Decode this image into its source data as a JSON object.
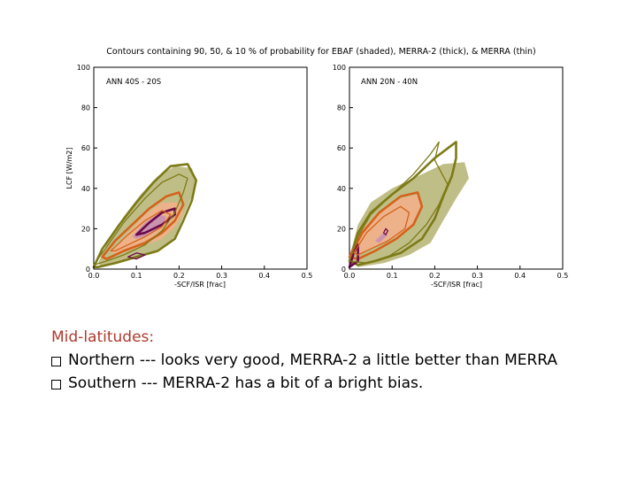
{
  "figure": {
    "title": "Contours containing 90, 50, & 10 % of probability for EBAF (shaded), MERRA-2 (thick), & MERRA (thin)"
  },
  "chart_data": [
    {
      "type": "contour",
      "panel_label": "ANN   40S - 20S",
      "xlabel": "-SCF/ISR  [frac]",
      "ylabel": "LCF [W/m2]",
      "xlim": [
        0.0,
        0.5
      ],
      "ylim": [
        0,
        100
      ],
      "xticks": [
        "0.0",
        "0.1",
        "0.2",
        "0.3",
        "0.4",
        "0.5"
      ],
      "yticks": [
        "0",
        "20",
        "40",
        "60",
        "80",
        "100"
      ],
      "series": [
        {
          "level": "10%",
          "source": "EBAF",
          "style": "shaded",
          "color": "#b9b77a",
          "points": [
            [
              0.01,
              3
            ],
            [
              0.03,
              12
            ],
            [
              0.07,
              26
            ],
            [
              0.11,
              37
            ],
            [
              0.15,
              46
            ],
            [
              0.19,
              51
            ],
            [
              0.23,
              50
            ],
            [
              0.24,
              43
            ],
            [
              0.23,
              36
            ],
            [
              0.21,
              26
            ],
            [
              0.19,
              16
            ],
            [
              0.16,
              10
            ],
            [
              0.11,
              6
            ],
            [
              0.06,
              3
            ],
            [
              0.02,
              1
            ]
          ]
        },
        {
          "level": "50%",
          "source": "EBAF",
          "style": "shaded",
          "color": "#f2b08a",
          "points": [
            [
              0.04,
              8
            ],
            [
              0.08,
              18
            ],
            [
              0.12,
              27
            ],
            [
              0.16,
              33
            ],
            [
              0.2,
              33
            ],
            [
              0.21,
              28
            ],
            [
              0.19,
              21
            ],
            [
              0.16,
              15
            ],
            [
              0.11,
              11
            ],
            [
              0.06,
              8
            ]
          ]
        },
        {
          "level": "90%",
          "source": "EBAF",
          "style": "shaded",
          "color": "#c58fb4",
          "points": [
            [
              0.09,
              16
            ],
            [
              0.12,
              23
            ],
            [
              0.15,
              27
            ],
            [
              0.17,
              26
            ],
            [
              0.16,
              21
            ],
            [
              0.13,
              17
            ],
            [
              0.1,
              15
            ]
          ]
        },
        {
          "level": "10%",
          "source": "MERRA-2",
          "style": "thick",
          "color": "#7d7a17",
          "points": [
            [
              0.0,
              1
            ],
            [
              0.02,
              10
            ],
            [
              0.06,
              22
            ],
            [
              0.1,
              33
            ],
            [
              0.14,
              43
            ],
            [
              0.18,
              51
            ],
            [
              0.22,
              52
            ],
            [
              0.24,
              44
            ],
            [
              0.23,
              34
            ],
            [
              0.21,
              24
            ],
            [
              0.19,
              15
            ],
            [
              0.15,
              9
            ],
            [
              0.1,
              6
            ],
            [
              0.05,
              3
            ],
            [
              0.01,
              1
            ]
          ]
        },
        {
          "level": "50%",
          "source": "MERRA-2",
          "style": "thick",
          "color": "#d4621c",
          "points": [
            [
              0.02,
              6
            ],
            [
              0.05,
              14
            ],
            [
              0.09,
              22
            ],
            [
              0.13,
              30
            ],
            [
              0.17,
              36
            ],
            [
              0.2,
              38
            ],
            [
              0.21,
              32
            ],
            [
              0.19,
              24
            ],
            [
              0.16,
              18
            ],
            [
              0.12,
              13
            ],
            [
              0.07,
              9
            ],
            [
              0.03,
              5
            ]
          ]
        },
        {
          "level": "90%",
          "source": "MERRA-2",
          "style": "thick",
          "color": "#6a0a4a",
          "points": [
            [
              0.1,
              17
            ],
            [
              0.13,
              23
            ],
            [
              0.16,
              28
            ],
            [
              0.19,
              30
            ],
            [
              0.19,
              27
            ],
            [
              0.16,
              22
            ],
            [
              0.12,
              18
            ]
          ]
        },
        {
          "level": "10%",
          "source": "MERRA",
          "style": "thin",
          "color": "#7d7a17",
          "points": [
            [
              0.0,
              2
            ],
            [
              0.03,
              11
            ],
            [
              0.07,
              23
            ],
            [
              0.12,
              35
            ],
            [
              0.16,
              43
            ],
            [
              0.2,
              47
            ],
            [
              0.22,
              45
            ],
            [
              0.21,
              38
            ],
            [
              0.19,
              28
            ],
            [
              0.16,
              19
            ],
            [
              0.12,
              12
            ],
            [
              0.07,
              7
            ],
            [
              0.03,
              4
            ]
          ]
        },
        {
          "level": "50%",
          "source": "MERRA",
          "style": "thin",
          "color": "#d4621c",
          "points": [
            [
              0.04,
              9
            ],
            [
              0.08,
              17
            ],
            [
              0.12,
              24
            ],
            [
              0.16,
              29
            ],
            [
              0.18,
              27
            ],
            [
              0.16,
              21
            ],
            [
              0.12,
              16
            ],
            [
              0.08,
              12
            ],
            [
              0.05,
              9
            ]
          ]
        },
        {
          "level": "90%",
          "source": "MERRA",
          "style": "thin",
          "color": "#6a0a4a",
          "points": [
            [
              0.08,
              6
            ],
            [
              0.1,
              8
            ],
            [
              0.12,
              7
            ],
            [
              0.1,
              5
            ]
          ]
        }
      ]
    },
    {
      "type": "contour",
      "panel_label": "ANN   20N - 40N",
      "xlabel": "-SCF/ISR  [frac]",
      "ylabel": "",
      "xlim": [
        0.0,
        0.5
      ],
      "ylim": [
        0,
        100
      ],
      "xticks": [
        "0.0",
        "0.1",
        "0.2",
        "0.3",
        "0.4",
        "0.5"
      ],
      "yticks": [
        "0",
        "20",
        "40",
        "60",
        "80",
        "100"
      ],
      "series": [
        {
          "level": "10%",
          "source": "EBAF",
          "style": "shaded",
          "color": "#b9b77a",
          "points": [
            [
              0.0,
              6
            ],
            [
              0.02,
              22
            ],
            [
              0.05,
              33
            ],
            [
              0.1,
              40
            ],
            [
              0.16,
              46
            ],
            [
              0.22,
              52
            ],
            [
              0.27,
              53
            ],
            [
              0.28,
              45
            ],
            [
              0.25,
              35
            ],
            [
              0.22,
              24
            ],
            [
              0.19,
              13
            ],
            [
              0.14,
              7
            ],
            [
              0.08,
              3
            ],
            [
              0.02,
              1
            ]
          ]
        },
        {
          "level": "50%",
          "source": "EBAF",
          "style": "shaded",
          "color": "#f2b08a",
          "points": [
            [
              0.0,
              8
            ],
            [
              0.03,
              20
            ],
            [
              0.07,
              28
            ],
            [
              0.12,
              35
            ],
            [
              0.16,
              37
            ],
            [
              0.17,
              30
            ],
            [
              0.15,
              22
            ],
            [
              0.11,
              16
            ],
            [
              0.06,
              11
            ],
            [
              0.02,
              7
            ]
          ]
        },
        {
          "level": "90%",
          "source": "EBAF",
          "style": "shaded",
          "color": "#c58fb4",
          "points": [
            [
              0.06,
              14
            ],
            [
              0.08,
              18
            ],
            [
              0.09,
              17
            ],
            [
              0.07,
              13
            ]
          ]
        },
        {
          "level": "10%",
          "source": "MERRA-2",
          "style": "thick",
          "color": "#7d7a17",
          "points": [
            [
              0.0,
              4
            ],
            [
              0.02,
              18
            ],
            [
              0.05,
              28
            ],
            [
              0.1,
              37
            ],
            [
              0.15,
              45
            ],
            [
              0.2,
              55
            ],
            [
              0.25,
              63
            ],
            [
              0.25,
              55
            ],
            [
              0.24,
              46
            ],
            [
              0.22,
              36
            ],
            [
              0.2,
              25
            ],
            [
              0.17,
              15
            ],
            [
              0.12,
              8
            ],
            [
              0.06,
              4
            ],
            [
              0.02,
              2
            ]
          ]
        },
        {
          "level": "50%",
          "source": "MERRA-2",
          "style": "thick",
          "color": "#d4621c",
          "points": [
            [
              0.0,
              6
            ],
            [
              0.03,
              18
            ],
            [
              0.07,
              28
            ],
            [
              0.12,
              36
            ],
            [
              0.16,
              38
            ],
            [
              0.17,
              31
            ],
            [
              0.15,
              22
            ],
            [
              0.11,
              15
            ],
            [
              0.06,
              9
            ],
            [
              0.02,
              5
            ]
          ]
        },
        {
          "level": "90%",
          "source": "MERRA-2",
          "style": "thick",
          "color": "#6a0a4a",
          "points": [
            [
              0.0,
              1
            ],
            [
              0.01,
              8
            ],
            [
              0.02,
              12
            ],
            [
              0.02,
              4
            ]
          ]
        },
        {
          "level": "10%",
          "source": "MERRA",
          "style": "thin",
          "color": "#7d7a17",
          "points": [
            [
              0.0,
              4
            ],
            [
              0.02,
              16
            ],
            [
              0.05,
              27
            ],
            [
              0.1,
              37
            ],
            [
              0.15,
              47
            ],
            [
              0.19,
              57
            ],
            [
              0.21,
              63
            ],
            [
              0.2,
              54
            ],
            [
              0.23,
              42
            ],
            [
              0.21,
              32
            ],
            [
              0.18,
              22
            ],
            [
              0.14,
              13
            ],
            [
              0.09,
              6
            ],
            [
              0.04,
              3
            ]
          ]
        },
        {
          "level": "50%",
          "source": "MERRA",
          "style": "thin",
          "color": "#d4621c",
          "points": [
            [
              0.01,
              8
            ],
            [
              0.04,
              18
            ],
            [
              0.08,
              26
            ],
            [
              0.12,
              31
            ],
            [
              0.14,
              28
            ],
            [
              0.13,
              20
            ],
            [
              0.09,
              14
            ],
            [
              0.05,
              10
            ],
            [
              0.02,
              7
            ]
          ]
        },
        {
          "level": "90%",
          "source": "MERRA",
          "style": "thin",
          "color": "#6a0a4a",
          "points": [
            [
              0.08,
              18
            ],
            [
              0.085,
              20
            ],
            [
              0.09,
              19
            ],
            [
              0.085,
              17
            ]
          ]
        }
      ]
    }
  ],
  "caption": {
    "heading": "Mid-latitudes:",
    "bullets": [
      "Northern --- looks very good, MERRA-2 a little better than MERRA",
      "Southern --- MERRA-2 has a bit of a bright bias."
    ]
  }
}
